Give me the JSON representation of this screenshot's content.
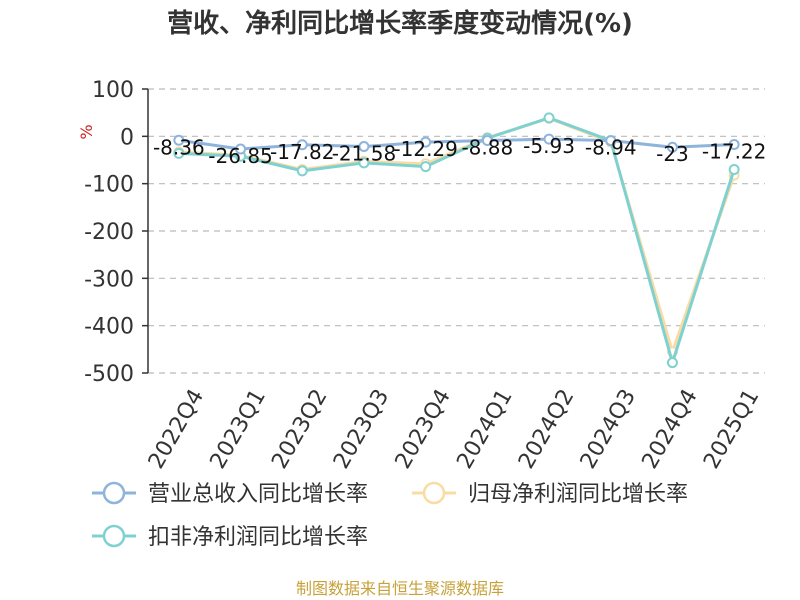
{
  "chart_data": {
    "type": "line",
    "title": "营收、净利同比增长率季度变动情况(%)",
    "ylabel": "%",
    "categories": [
      "2022Q4",
      "2023Q1",
      "2023Q2",
      "2023Q3",
      "2023Q4",
      "2024Q1",
      "2024Q2",
      "2024Q3",
      "2024Q4",
      "2025Q1"
    ],
    "ylim": [
      -500,
      100
    ],
    "yticks": [
      100,
      0,
      -100,
      -200,
      -300,
      -400,
      -500
    ],
    "grid": true,
    "legend_position": "bottom",
    "series": [
      {
        "name": "营业总收入同比增长率",
        "color": "#8eb4dc",
        "values": [
          -8.36,
          -26.85,
          -17.82,
          -21.58,
          -12.29,
          -8.88,
          -5.93,
          -8.94,
          -23,
          -17.22
        ],
        "labels": [
          "-8.36",
          "-26.85",
          "-17.82",
          "-21.58",
          "-12.29",
          "-8.88",
          "-5.93",
          "-8.94",
          "-23",
          "-17.22"
        ]
      },
      {
        "name": "归母净利润同比增长率",
        "color": "#f9dca4",
        "values": [
          -33,
          -40,
          -70,
          -53,
          -58,
          -3,
          38,
          -12,
          -455,
          -82
        ]
      },
      {
        "name": "扣非净利润同比增长率",
        "color": "#7fd1d1",
        "values": [
          -36,
          -42,
          -73,
          -56,
          -64,
          -4,
          39,
          -9,
          -478,
          -70
        ]
      }
    ]
  },
  "source": "制图数据来自恒生聚源数据库"
}
